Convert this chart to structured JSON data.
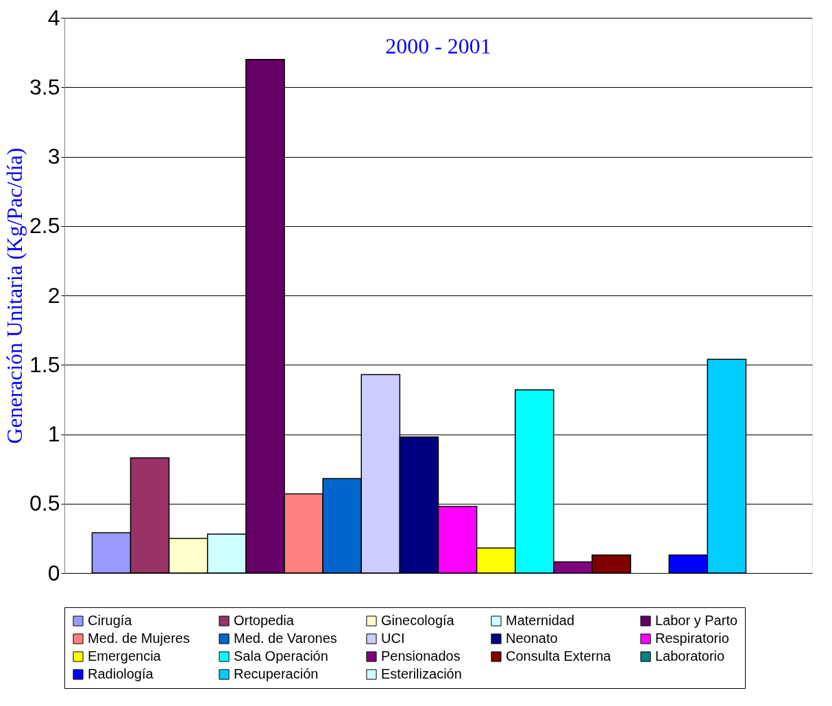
{
  "chart_data": {
    "type": "bar",
    "title": "2000 - 2001",
    "ylabel": "Generación Unitaria (Kg/Pac/día)",
    "categories": [
      null
    ],
    "series": [
      {
        "name": "Cirugía",
        "color": "#9999ff",
        "values": [
          0.29
        ]
      },
      {
        "name": "Ortopedia",
        "color": "#993366",
        "values": [
          0.83
        ]
      },
      {
        "name": "Ginecología",
        "color": "#ffffcc",
        "values": [
          0.25
        ]
      },
      {
        "name": "Maternidad",
        "color": "#ccffff",
        "values": [
          0.28
        ]
      },
      {
        "name": "Labor y Parto",
        "color": "#660066",
        "values": [
          3.7
        ]
      },
      {
        "name": "Med. de Mujeres",
        "color": "#ff8080",
        "values": [
          0.57
        ]
      },
      {
        "name": "Med. de Varones",
        "color": "#0066cc",
        "values": [
          0.68
        ]
      },
      {
        "name": "UCI",
        "color": "#ccccff",
        "values": [
          1.43
        ]
      },
      {
        "name": "Neonato",
        "color": "#000080",
        "values": [
          0.98
        ]
      },
      {
        "name": "Respiratorio",
        "color": "#ff00ff",
        "values": [
          0.48
        ]
      },
      {
        "name": "Emergencia",
        "color": "#ffff00",
        "values": [
          0.18
        ]
      },
      {
        "name": "Sala Operación",
        "color": "#00ffff",
        "values": [
          1.32
        ]
      },
      {
        "name": "Pensionados",
        "color": "#800080",
        "values": [
          0.08
        ]
      },
      {
        "name": "Consulta Externa",
        "color": "#800000",
        "values": [
          0.13
        ]
      },
      {
        "name": "Laboratorio",
        "color": "#008080",
        "values": [
          null
        ]
      },
      {
        "name": "Radiología",
        "color": "#0000ff",
        "values": [
          0.13
        ]
      },
      {
        "name": "Recuperación",
        "color": "#00ccff",
        "values": [
          1.54
        ]
      },
      {
        "name": "Esterilización",
        "color": "#ccffff",
        "values": [
          null
        ]
      }
    ],
    "ylim": [
      0,
      4
    ],
    "yticks": [
      0,
      0.5,
      1,
      1.5,
      2,
      2.5,
      3,
      3.5,
      4
    ],
    "grid": "y",
    "legend": "bottom",
    "tick_labels": "y"
  }
}
